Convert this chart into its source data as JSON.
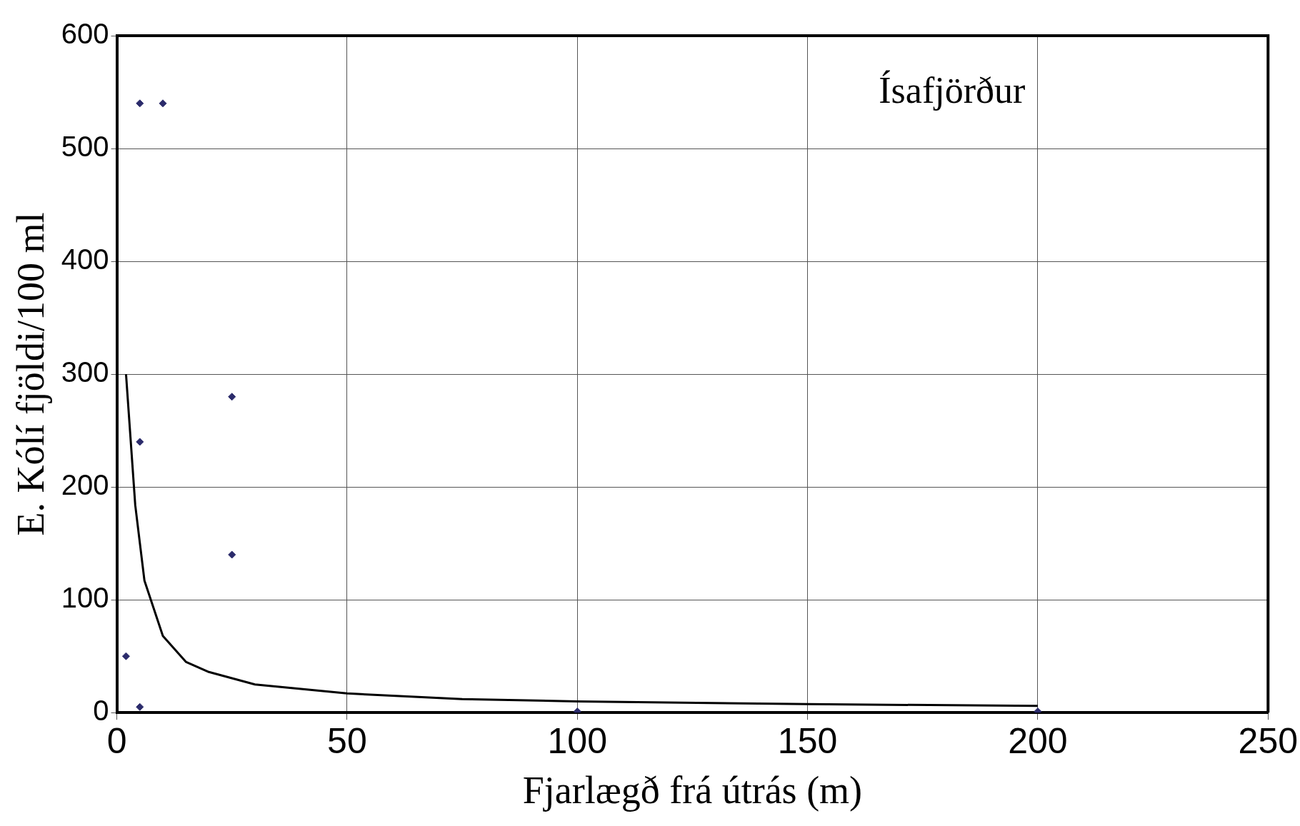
{
  "chart_data": {
    "type": "scatter",
    "xlabel": "Fjarlægð frá útrás (m)",
    "ylabel": "E. Kólí fjöldi/100 ml",
    "annotations": [
      "Ísafjörður"
    ],
    "xlim": [
      0,
      250
    ],
    "xticks": [
      0,
      50,
      100,
      150,
      200,
      250
    ],
    "ylim": [
      0,
      600
    ],
    "yticks": [
      0,
      100,
      200,
      300,
      400,
      500,
      600
    ],
    "grid": true,
    "legend": false,
    "series": [
      {
        "color": "#2b2b6b",
        "marker": "diamond",
        "x": [
          2,
          5,
          10,
          25,
          5,
          25,
          5,
          100,
          200
        ],
        "values": [
          50,
          540,
          540,
          280,
          240,
          140,
          5,
          1,
          1
        ]
      },
      {
        "type": "line",
        "color": "#000000",
        "marker": "none",
        "line_style": "solid",
        "x": [
          2,
          4,
          6,
          10,
          15,
          20,
          30,
          50,
          75,
          100,
          150,
          200
        ],
        "values": [
          300,
          184,
          117,
          68,
          45,
          36,
          25,
          17,
          12,
          10,
          7.5,
          6
        ]
      }
    ]
  }
}
